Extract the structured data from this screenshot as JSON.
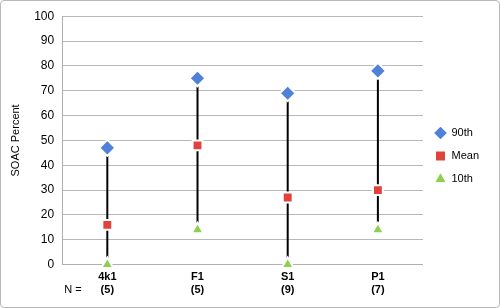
{
  "chart_data": {
    "type": "range",
    "y_label": "SOAC Percent",
    "categories": [
      "4k1",
      "F1",
      "S1",
      "P1"
    ],
    "sample_size_label": "N =",
    "sample_sizes": [
      "(5)",
      "(5)",
      "(9)",
      "(7)"
    ],
    "series": [
      {
        "name": "90th",
        "color": "#4f81d9",
        "marker": "diamond",
        "line_style": "none",
        "values": [
          47,
          75,
          69,
          78
        ]
      },
      {
        "name": "Mean",
        "color": "#e0433d",
        "marker": "square",
        "line_style": "none",
        "values": [
          16,
          48,
          27,
          30
        ]
      },
      {
        "name": "10th",
        "color": "#8ed04c",
        "marker": "triangle",
        "line_style": "none",
        "values": [
          0,
          14,
          0,
          14
        ]
      }
    ],
    "ylim": [
      0,
      100
    ],
    "yticks": [
      0,
      10,
      20,
      30,
      40,
      50,
      60,
      70,
      80,
      90,
      100
    ],
    "grid": true,
    "legend": "right"
  }
}
